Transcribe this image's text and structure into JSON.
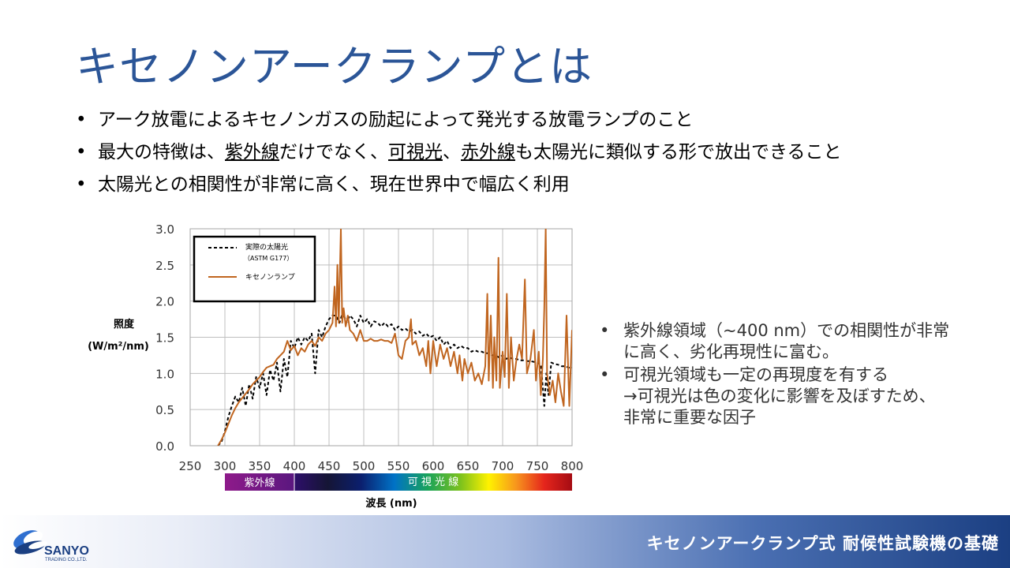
{
  "slide": {
    "title": "キセノンアークランプとは",
    "bullets": [
      {
        "segments": [
          {
            "text": "アーク放電によるキセノンガスの励起によって発光する放電ランプのこと",
            "underline": false
          }
        ]
      },
      {
        "segments": [
          {
            "text": "最大の特徴は、",
            "underline": false
          },
          {
            "text": "紫外線",
            "underline": true
          },
          {
            "text": "だけでなく、",
            "underline": false
          },
          {
            "text": "可視光",
            "underline": true
          },
          {
            "text": "、",
            "underline": false
          },
          {
            "text": "赤外線",
            "underline": true
          },
          {
            "text": "も太陽光に類似する形で放出できること",
            "underline": false
          }
        ]
      },
      {
        "segments": [
          {
            "text": "太陽光との相関性が非常に高く、現在世界中で幅広く利用",
            "underline": false
          }
        ]
      }
    ],
    "side_notes": [
      {
        "lines": [
          "紫外線領域（~400 nm）での相関性が非常",
          "に高く、劣化再現性に富む。"
        ]
      },
      {
        "lines": [
          "可視光領域も一定の再現度を有する",
          "→可視光は色の変化に影響を及ぼすため、",
          "非常に重要な因子"
        ]
      }
    ],
    "footer_title": "キセノンアークランプ式 耐候性試験機の基礎",
    "logo": {
      "name": "SANYO",
      "sub": "TRADING CO.,LTD."
    }
  },
  "chart_data": {
    "type": "line",
    "xlabel": "波長 (nm)",
    "ylabel_line1": "照度",
    "ylabel_line2": "(W/m²/nm)",
    "xlim": [
      250,
      800
    ],
    "ylim": [
      0,
      3.0
    ],
    "x_ticks": [
      250,
      300,
      350,
      400,
      450,
      500,
      550,
      600,
      650,
      700,
      750,
      800
    ],
    "y_ticks": [
      "0.0",
      "0.5",
      "1.0",
      "1.5",
      "2.0",
      "2.5",
      "3.0"
    ],
    "grid": true,
    "legend_position": "top-left",
    "spectrum_band": {
      "uv_label": "紫外線",
      "visible_label": "可 視 光 線",
      "uv_range": [
        300,
        400
      ],
      "visible_range": [
        400,
        800
      ]
    },
    "colors": {
      "sun": "#000000",
      "xenon": "#c0651f",
      "grid": "#bfbfbf"
    },
    "series": [
      {
        "name": "実際の太陽光",
        "name_sub": "（ASTM G177）",
        "style": "dashed",
        "points": [
          [
            290,
            0
          ],
          [
            295,
            0.05
          ],
          [
            300,
            0.2
          ],
          [
            305,
            0.4
          ],
          [
            310,
            0.55
          ],
          [
            315,
            0.68
          ],
          [
            320,
            0.6
          ],
          [
            325,
            0.8
          ],
          [
            330,
            0.55
          ],
          [
            335,
            0.85
          ],
          [
            340,
            0.65
          ],
          [
            345,
            0.95
          ],
          [
            350,
            0.8
          ],
          [
            355,
            1.0
          ],
          [
            360,
            0.7
          ],
          [
            365,
            1.05
          ],
          [
            370,
            0.9
          ],
          [
            375,
            1.15
          ],
          [
            380,
            0.75
          ],
          [
            385,
            1.2
          ],
          [
            390,
            0.95
          ],
          [
            395,
            1.45
          ],
          [
            400,
            1.35
          ],
          [
            405,
            1.5
          ],
          [
            410,
            1.4
          ],
          [
            415,
            1.5
          ],
          [
            420,
            1.45
          ],
          [
            425,
            1.55
          ],
          [
            430,
            1.0
          ],
          [
            435,
            1.6
          ],
          [
            440,
            1.5
          ],
          [
            445,
            1.65
          ],
          [
            450,
            1.75
          ],
          [
            455,
            1.8
          ],
          [
            460,
            1.8
          ],
          [
            465,
            1.7
          ],
          [
            470,
            1.85
          ],
          [
            475,
            1.7
          ],
          [
            480,
            1.8
          ],
          [
            485,
            1.75
          ],
          [
            490,
            1.65
          ],
          [
            495,
            1.8
          ],
          [
            500,
            1.7
          ],
          [
            505,
            1.75
          ],
          [
            510,
            1.65
          ],
          [
            515,
            1.72
          ],
          [
            520,
            1.7
          ],
          [
            525,
            1.65
          ],
          [
            530,
            1.7
          ],
          [
            535,
            1.65
          ],
          [
            540,
            1.68
          ],
          [
            545,
            1.6
          ],
          [
            550,
            1.65
          ],
          [
            555,
            1.6
          ],
          [
            560,
            1.62
          ],
          [
            565,
            1.58
          ],
          [
            570,
            1.6
          ],
          [
            575,
            1.55
          ],
          [
            580,
            1.58
          ],
          [
            585,
            1.52
          ],
          [
            590,
            1.55
          ],
          [
            595,
            1.5
          ],
          [
            600,
            1.52
          ],
          [
            605,
            1.45
          ],
          [
            610,
            1.5
          ],
          [
            615,
            1.4
          ],
          [
            620,
            1.45
          ],
          [
            625,
            1.35
          ],
          [
            630,
            1.4
          ],
          [
            635,
            1.35
          ],
          [
            640,
            1.38
          ],
          [
            645,
            1.35
          ],
          [
            650,
            1.35
          ],
          [
            655,
            1.3
          ],
          [
            660,
            1.32
          ],
          [
            665,
            1.3
          ],
          [
            670,
            1.3
          ],
          [
            675,
            1.28
          ],
          [
            680,
            1.28
          ],
          [
            685,
            1.25
          ],
          [
            690,
            1.25
          ],
          [
            695,
            1.22
          ],
          [
            700,
            1.25
          ],
          [
            705,
            1.2
          ],
          [
            710,
            1.22
          ],
          [
            715,
            1.2
          ],
          [
            720,
            1.2
          ],
          [
            725,
            1.18
          ],
          [
            730,
            1.18
          ],
          [
            735,
            1.17
          ],
          [
            740,
            1.17
          ],
          [
            745,
            1.16
          ],
          [
            750,
            1.15
          ],
          [
            755,
            1.12
          ],
          [
            758,
            0.8
          ],
          [
            760,
            0.55
          ],
          [
            763,
            1.0
          ],
          [
            766,
            0.7
          ],
          [
            770,
            1.15
          ],
          [
            775,
            1.13
          ],
          [
            780,
            1.12
          ],
          [
            785,
            1.1
          ],
          [
            790,
            1.1
          ],
          [
            795,
            1.08
          ],
          [
            800,
            1.08
          ]
        ]
      },
      {
        "name": "キセノンランプ",
        "style": "solid",
        "points": [
          [
            290,
            0
          ],
          [
            295,
            0.08
          ],
          [
            300,
            0.18
          ],
          [
            305,
            0.3
          ],
          [
            310,
            0.42
          ],
          [
            315,
            0.52
          ],
          [
            320,
            0.6
          ],
          [
            325,
            0.66
          ],
          [
            330,
            0.72
          ],
          [
            335,
            0.78
          ],
          [
            340,
            0.85
          ],
          [
            345,
            0.9
          ],
          [
            350,
            0.95
          ],
          [
            355,
            1.02
          ],
          [
            360,
            1.08
          ],
          [
            365,
            1.1
          ],
          [
            370,
            1.12
          ],
          [
            375,
            1.2
          ],
          [
            380,
            1.25
          ],
          [
            385,
            1.3
          ],
          [
            390,
            1.45
          ],
          [
            395,
            1.32
          ],
          [
            400,
            1.38
          ],
          [
            405,
            1.25
          ],
          [
            410,
            1.35
          ],
          [
            415,
            1.3
          ],
          [
            420,
            1.4
          ],
          [
            425,
            1.45
          ],
          [
            430,
            1.38
          ],
          [
            435,
            1.5
          ],
          [
            440,
            1.45
          ],
          [
            445,
            1.55
          ],
          [
            450,
            1.6
          ],
          [
            455,
            1.7
          ],
          [
            458,
            2.2
          ],
          [
            460,
            1.65
          ],
          [
            462,
            2.5
          ],
          [
            464,
            1.7
          ],
          [
            467,
            3.0
          ],
          [
            469,
            1.7
          ],
          [
            471,
            1.9
          ],
          [
            474,
            1.65
          ],
          [
            477,
            1.8
          ],
          [
            480,
            1.6
          ],
          [
            485,
            1.55
          ],
          [
            490,
            1.45
          ],
          [
            495,
            1.6
          ],
          [
            500,
            1.45
          ],
          [
            505,
            1.45
          ],
          [
            510,
            1.48
          ],
          [
            515,
            1.45
          ],
          [
            520,
            1.45
          ],
          [
            525,
            1.47
          ],
          [
            530,
            1.45
          ],
          [
            535,
            1.45
          ],
          [
            540,
            1.42
          ],
          [
            545,
            1.55
          ],
          [
            550,
            1.25
          ],
          [
            555,
            1.2
          ],
          [
            560,
            1.45
          ],
          [
            565,
            1.5
          ],
          [
            568,
            1.75
          ],
          [
            570,
            1.4
          ],
          [
            575,
            1.45
          ],
          [
            580,
            1.25
          ],
          [
            585,
            1.35
          ],
          [
            590,
            1.1
          ],
          [
            593,
            1.45
          ],
          [
            596,
            1.0
          ],
          [
            600,
            1.45
          ],
          [
            605,
            1.1
          ],
          [
            610,
            1.4
          ],
          [
            615,
            1.2
          ],
          [
            620,
            1.35
          ],
          [
            625,
            1.1
          ],
          [
            630,
            1.3
          ],
          [
            635,
            1.0
          ],
          [
            638,
            1.25
          ],
          [
            642,
            0.9
          ],
          [
            645,
            1.2
          ],
          [
            650,
            1.0
          ],
          [
            655,
            1.15
          ],
          [
            660,
            0.9
          ],
          [
            665,
            1.0
          ],
          [
            670,
            0.85
          ],
          [
            675,
            1.1
          ],
          [
            678,
            2.1
          ],
          [
            680,
            0.9
          ],
          [
            683,
            1.8
          ],
          [
            686,
            0.8
          ],
          [
            688,
            1.5
          ],
          [
            691,
            0.9
          ],
          [
            694,
            2.6
          ],
          [
            696,
            0.8
          ],
          [
            700,
            1.3
          ],
          [
            703,
            0.95
          ],
          [
            706,
            2.1
          ],
          [
            709,
            0.8
          ],
          [
            712,
            1.5
          ],
          [
            716,
            0.9
          ],
          [
            720,
            1.2
          ],
          [
            724,
            1.4
          ],
          [
            728,
            1.2
          ],
          [
            732,
            2.3
          ],
          [
            735,
            1.0
          ],
          [
            740,
            1.2
          ],
          [
            745,
            1.6
          ],
          [
            748,
            0.9
          ],
          [
            752,
            1.3
          ],
          [
            755,
            0.7
          ],
          [
            758,
            1.2
          ],
          [
            760,
            1.9
          ],
          [
            762,
            3.0
          ],
          [
            764,
            1.0
          ],
          [
            768,
            0.7
          ],
          [
            772,
            0.9
          ],
          [
            776,
            0.6
          ],
          [
            780,
            1.0
          ],
          [
            784,
            0.75
          ],
          [
            788,
            0.55
          ],
          [
            792,
            1.8
          ],
          [
            796,
            0.55
          ],
          [
            800,
            1.6
          ]
        ]
      }
    ]
  }
}
